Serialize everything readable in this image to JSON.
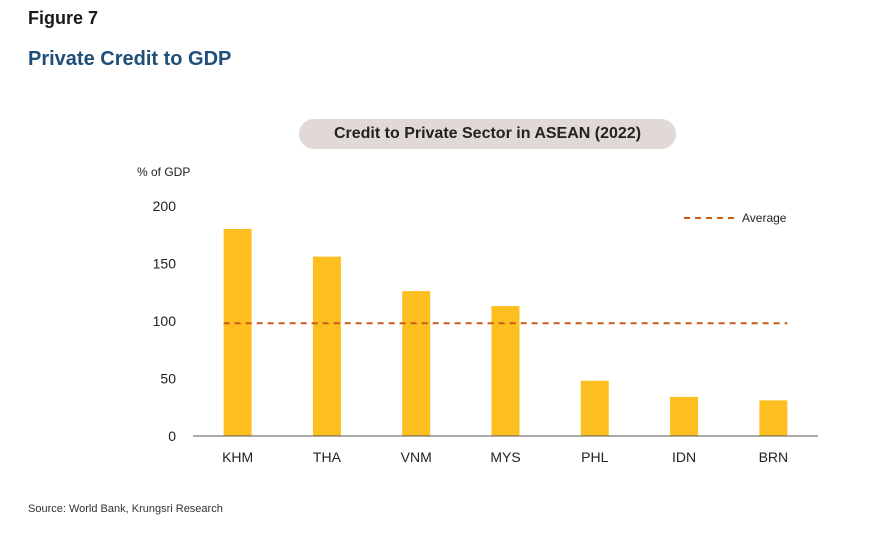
{
  "figure_label": "Figure 7",
  "figure_title": "Private Credit to GDP",
  "source": "Source: World Bank, Krungsri Research",
  "colors": {
    "bar": "#fdbf20",
    "average": "#c85a1a",
    "axis": "#555555",
    "title_pill": "#e1d9d6",
    "heading": "#1f4e79"
  },
  "chart_data": {
    "type": "bar",
    "title": "Credit to Private Sector in ASEAN (2022)",
    "ylabel": "% of GDP",
    "xlabel": "",
    "categories": [
      "KHM",
      "THA",
      "VNM",
      "MYS",
      "PHL",
      "IDN",
      "BRN"
    ],
    "values": [
      180,
      156,
      126,
      113,
      48,
      34,
      31
    ],
    "average": {
      "name": "Average",
      "value": 98
    },
    "ylim": [
      0,
      200
    ],
    "yticks": [
      "0",
      "50",
      "100",
      "150",
      "200"
    ],
    "grid": false,
    "legend": "top-right"
  }
}
